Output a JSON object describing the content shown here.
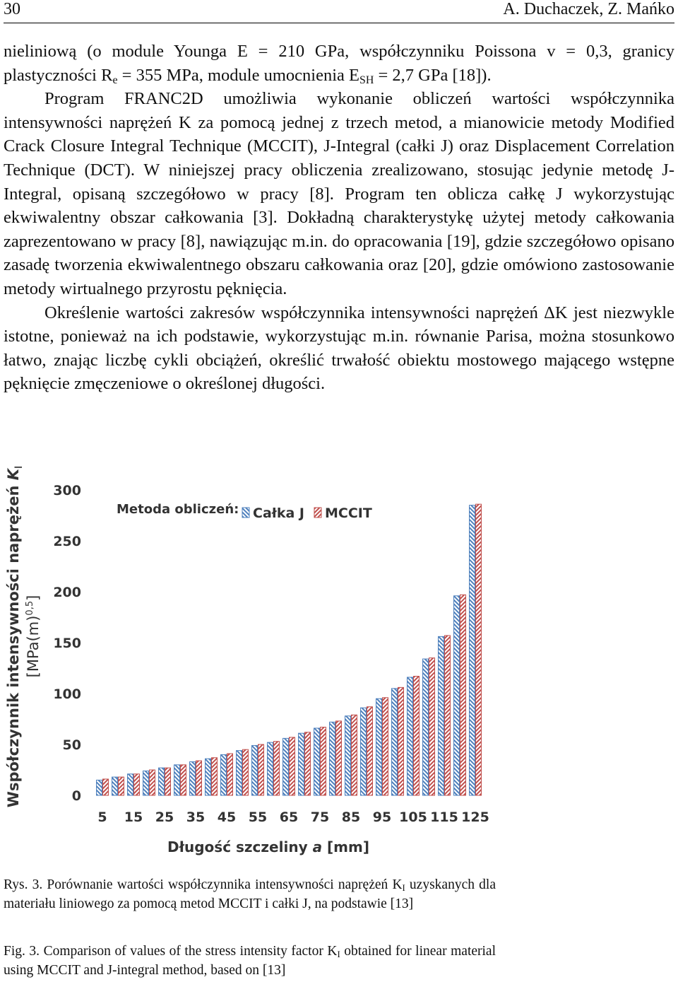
{
  "header": {
    "page": "30",
    "authors": "A. Duchaczek, Z. Mańko"
  },
  "paragraphs": [
    [
      "nieliniową (o module Younga E = 210 GPa, współczynniku Poissona v = 0,3, granicy plastyczności R",
      "e",
      " = 355 MPa, module umocnienia E",
      "SH",
      " = 2,7 GPa [18])."
    ],
    [
      "Program FRANC2D umożliwia wykonanie obliczeń wartości współczynnika intensywności naprężeń K za pomocą jednej z trzech metod, a mianowicie metody Modified Crack Closure Integral Technique (MCCIT), J-Integral (całki J) oraz Displacement Correlation Technique (DCT). W niniejszej pracy obliczenia zrealizowano, stosując jedynie metodę J-Integral, opisaną szczegółowo w pracy [8]. Program ten oblicza całkę J wykorzystując ekwiwalentny obszar całkowania [3]. Dokładną charakterystykę użytej metody całkowania zaprezentowano w pracy [8], nawiązując m.in. do opracowania [19], gdzie szczegółowo opisano zasadę tworzenia ekwiwalentnego obszaru całkowania oraz [20], gdzie omówiono zastosowanie metody wirtualnego przyrostu pęknięcia."
    ],
    [
      "Określenie wartości zakresów współczynnika intensywności naprężeń ΔK jest niezwykle istotne, ponieważ na ich podstawie, wykorzystując m.in. równanie Parisa, można stosunkowo łatwo, znając liczbę cykli obciążeń, określić trwałość obiektu mostowego mającego wstępne pęknięcie zmęczeniowe o określonej długości."
    ]
  ],
  "chart_data": {
    "type": "bar",
    "y_label": [
      "Współczynnik intensywności naprężeń ",
      "K",
      "I"
    ],
    "y_label2": [
      "[MPa(m)",
      "0,5",
      "]"
    ],
    "x_label": [
      "Długość szczeliny ",
      "a",
      " [mm]"
    ],
    "legend_title": "Metoda obliczeń:",
    "categories": [
      "5",
      null,
      "15",
      null,
      "25",
      null,
      "35",
      null,
      "45",
      null,
      "55",
      null,
      "65",
      null,
      "75",
      null,
      "85",
      null,
      "95",
      null,
      "105",
      null,
      "115",
      null,
      "125"
    ],
    "series": [
      {
        "name": "Całka J",
        "color": "#4f81bd",
        "values": [
          15,
          18,
          21,
          24,
          27,
          30,
          33,
          36,
          40,
          44,
          49,
          52,
          56,
          61,
          66,
          72,
          78,
          86,
          95,
          105,
          116,
          134,
          156,
          196,
          285
        ]
      },
      {
        "name": "MCCIT",
        "color": "#c0504d",
        "values": [
          16,
          18,
          21,
          25,
          27,
          30,
          34,
          37,
          41,
          45,
          50,
          53,
          57,
          62,
          67,
          73,
          79,
          87,
          96,
          106,
          117,
          135,
          157,
          197,
          286
        ]
      }
    ],
    "ylim": [
      0,
      300
    ],
    "yticks": [
      0,
      50,
      100,
      150,
      200,
      250,
      300
    ],
    "grid": false
  },
  "captions": {
    "pl": [
      "Rys. 3. Porównanie wartości współczynnika intensywności naprężeń K",
      "I",
      " uzyskanych dla materiału liniowego za pomocą metod MCCIT i całki J, na podstawie [13]"
    ],
    "en": [
      "Fig. 3. Comparison of values of the stress intensity factor K",
      "I",
      " obtained for linear material using MCCIT and J-integral method, based on [13]"
    ]
  }
}
